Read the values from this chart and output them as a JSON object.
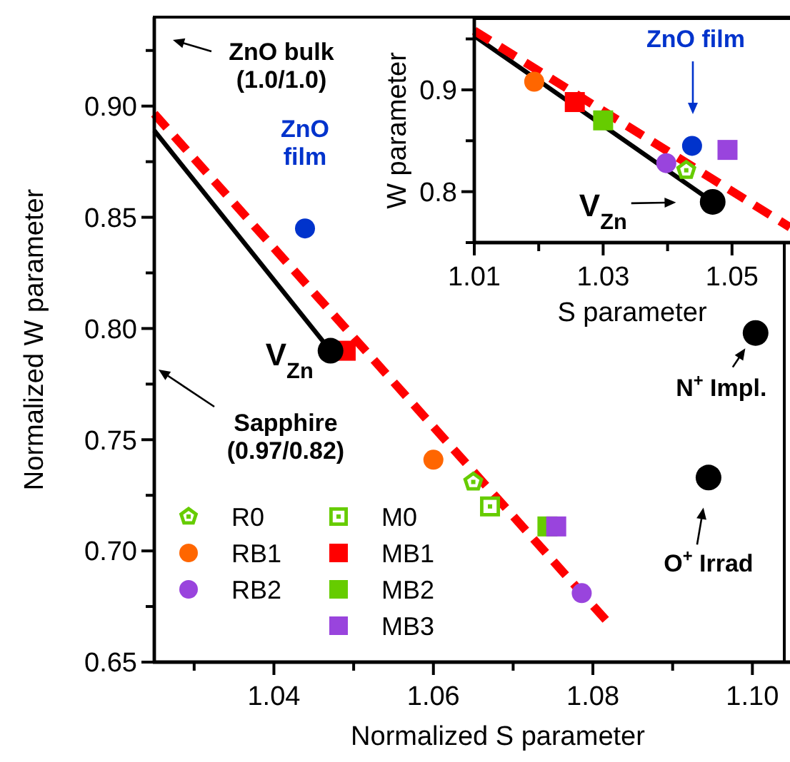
{
  "chart_data": [
    {
      "type": "scatter",
      "xlabel": "Normalized S parameter",
      "ylabel": "Normalized W parameter",
      "xlim": [
        1.025,
        1.104
      ],
      "ylim": [
        0.65,
        0.94
      ],
      "xticks": [
        {
          "value": 1.03,
          "label": null
        },
        1.04,
        {
          "value": 1.05,
          "label": null
        },
        1.06,
        {
          "value": 1.07,
          "label": null
        },
        1.08,
        {
          "value": 1.09,
          "label": null
        },
        {
          "value": 1.1,
          "label": "1.10"
        }
      ],
      "yticks": [
        {
          "value": 0.65,
          "label": "0.65"
        },
        {
          "value": 0.675,
          "label": null
        },
        {
          "value": 0.7,
          "label": "0.70"
        },
        {
          "value": 0.725,
          "label": null
        },
        0.75,
        {
          "value": 0.775,
          "label": null
        },
        {
          "value": 0.8,
          "label": "0.80"
        },
        {
          "value": 0.825,
          "label": null
        },
        0.85,
        {
          "value": 0.875,
          "label": null
        },
        {
          "value": 0.9,
          "label": "0.90"
        },
        {
          "value": 0.925,
          "label": null
        }
      ],
      "legend": "bottom left",
      "grid": false,
      "series": [
        {
          "type": "line",
          "color": "#000000",
          "line_style": "solid",
          "marker": "none",
          "x": [
            1.025,
            1.0471
          ],
          "values": [
            0.889,
            0.79
          ]
        },
        {
          "type": "line",
          "color": "#ff0000",
          "line_style": "dashed",
          "marker": "none",
          "x": [
            1.025,
            1.0821
          ],
          "values": [
            0.8965,
            0.667
          ]
        },
        {
          "name": "R0",
          "color": "#66cc00",
          "x": [
            1.065
          ],
          "values": [
            0.731
          ]
        },
        {
          "name": "RB1",
          "color": "#ff6600",
          "marker": "circle",
          "x": [
            1.06
          ],
          "values": [
            0.741
          ]
        },
        {
          "name": "RB2",
          "color": "#9944dd",
          "marker": "circle",
          "x": [
            1.0786
          ],
          "values": [
            0.681
          ]
        },
        {
          "name": "M0",
          "color": "#66cc00",
          "marker": "square-open",
          "x": [
            1.0671
          ],
          "values": [
            0.72
          ]
        },
        {
          "name": "MB1",
          "color": "#ff0000",
          "marker": "square",
          "x": [
            1.049
          ],
          "values": [
            0.79
          ]
        },
        {
          "name": "MB2",
          "color": "#66cc00",
          "marker": "square",
          "x": [
            1.0743
          ],
          "values": [
            0.711
          ]
        },
        {
          "name": "MB3",
          "color": "#9944dd",
          "marker": "square",
          "x": [
            1.0754
          ],
          "values": [
            0.711
          ]
        },
        {
          "color": "#0033cc",
          "marker": "circle",
          "x": [
            1.0439
          ],
          "values": [
            0.845
          ]
        },
        {
          "color": "#000000",
          "marker": "circle",
          "x": [
            1.0471
          ],
          "values": [
            0.79
          ]
        },
        {
          "color": "#000000",
          "marker": "circle",
          "x": [
            1.1004
          ],
          "values": [
            0.798
          ]
        },
        {
          "color": "#000000",
          "marker": "circle",
          "x": [
            1.0945
          ],
          "values": [
            0.733
          ]
        }
      ],
      "annotations": [
        "ZnO bulk\n(1.0/1.0)",
        "Sapphire\n(0.97/0.82)",
        {
          "text": "ZnO film",
          "x": 1.0439,
          "y": 0.845
        },
        {
          "text": "V$_{Zn}$",
          "x": 1.0471,
          "y": 0.79
        },
        {
          "text": "N$^{+}$ Impl.",
          "x": 1.1004,
          "y": 0.798
        },
        {
          "text": "O$^{+}$ Irrad",
          "x": 1.0945,
          "y": 0.733
        }
      ]
    },
    {
      "type": "scatter",
      "xlabel": "S parameter",
      "ylabel": "W parameter",
      "xlim": [
        1.01,
        1.059
      ],
      "ylim": [
        0.75,
        0.97
      ],
      "xticks": [
        1.01,
        {
          "value": 1.02,
          "label": null
        },
        1.03,
        {
          "value": 1.04,
          "label": null
        },
        1.05
      ],
      "yticks": [
        {
          "value": 0.75,
          "label": null
        },
        0.8,
        {
          "value": 0.85,
          "label": null
        },
        0.9,
        {
          "value": 0.95,
          "label": null
        }
      ],
      "grid": false,
      "series": [
        {
          "type": "line",
          "color": "#000000",
          "line_style": "solid",
          "marker": "none",
          "x": [
            1.01,
            1.047
          ],
          "values": [
            0.953,
            0.79
          ]
        },
        {
          "type": "line",
          "color": "#ff0000",
          "line_style": "dashed",
          "marker": "none",
          "x": [
            1.01,
            1.059
          ],
          "values": [
            0.958,
            0.765
          ]
        },
        {
          "color": "#ff6600",
          "marker": "circle",
          "x": [
            1.0193
          ],
          "values": [
            0.908
          ]
        },
        {
          "color": "#ff0000",
          "marker": "square",
          "x": [
            1.0256
          ],
          "values": [
            0.888
          ]
        },
        {
          "color": "#66cc00",
          "marker": "square",
          "x": [
            1.03
          ],
          "values": [
            0.87
          ]
        },
        {
          "color": "#0033cc",
          "marker": "circle",
          "x": [
            1.0438
          ],
          "values": [
            0.845
          ]
        },
        {
          "color": "#9944dd",
          "marker": "square",
          "x": [
            1.0493
          ],
          "values": [
            0.841
          ]
        },
        {
          "color": "#9944dd",
          "marker": "circle",
          "x": [
            1.0398
          ],
          "values": [
            0.828
          ]
        },
        {
          "color": "#66cc00",
          "x": [
            1.0429
          ],
          "values": [
            0.821
          ]
        },
        {
          "color": "#000000",
          "marker": "circle",
          "x": [
            1.047
          ],
          "values": [
            0.79
          ]
        }
      ],
      "annotations": [
        "ZnO film",
        {
          "text": "V$_{Zn}$",
          "x": 1.047,
          "y": 0.79
        }
      ]
    }
  ]
}
